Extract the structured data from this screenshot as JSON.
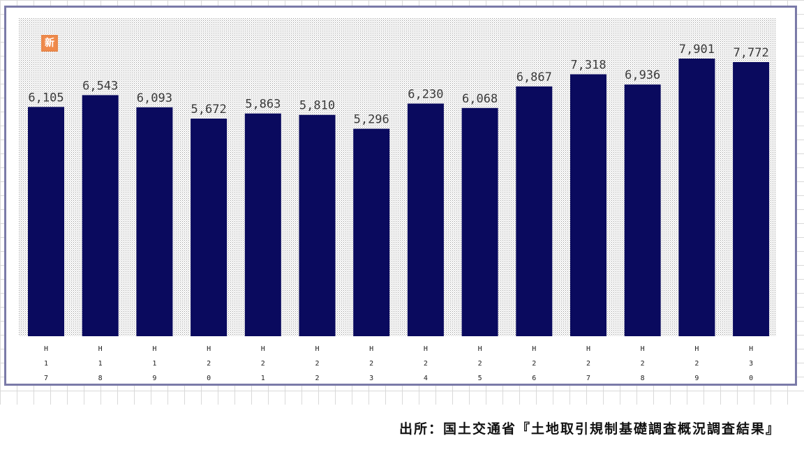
{
  "badge": {
    "label": "新"
  },
  "source": "出所：国土交通省『土地取引規制基礎調査概況調査結果』",
  "colors": {
    "bar": "#0a0a5e",
    "frame": "#7a7aa8",
    "badge": "#f08a4b"
  },
  "chart_data": {
    "type": "bar",
    "categories": [
      "H17",
      "H18",
      "H19",
      "H20",
      "H21",
      "H22",
      "H23",
      "H24",
      "H25",
      "H26",
      "H27",
      "H28",
      "H29",
      "H30"
    ],
    "values": [
      6105,
      6543,
      6093,
      5672,
      5863,
      5810,
      5296,
      6230,
      6068,
      6867,
      7318,
      6936,
      7901,
      7772
    ],
    "value_labels": [
      "6,105",
      "6,543",
      "6,093",
      "5,672",
      "5,863",
      "5,810",
      "5,296",
      "6,230",
      "6,068",
      "6,867",
      "7,318",
      "6,936",
      "7,901",
      "7,772"
    ],
    "title": "",
    "xlabel": "",
    "ylabel": "",
    "ylim": [
      0,
      8000
    ],
    "grid": false,
    "legend": "none"
  }
}
